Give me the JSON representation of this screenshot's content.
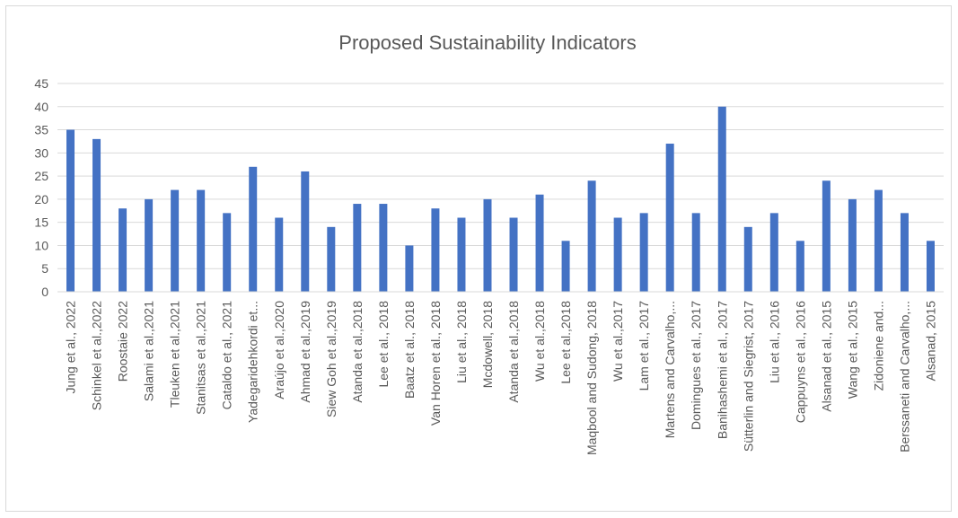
{
  "chart_data": {
    "type": "bar",
    "title": "Proposed Sustainability Indicators",
    "xlabel": "",
    "ylabel": "",
    "ylim": [
      0,
      45
    ],
    "yticks": [
      0,
      5,
      10,
      15,
      20,
      25,
      30,
      35,
      40,
      45
    ],
    "grid": true,
    "legend": "none",
    "bar_color": "#4472c4",
    "categories": [
      "Jung et al., 2022",
      "Schinkel et al.,2022",
      "Roostaie 2022",
      "Salami et al.,2021",
      "Tleuken et al.,2021",
      "Stanitsas et al.,2021",
      "Cataldo et al., 2021",
      "Yadegaridehkordi et...",
      "Araújo et al.,2020",
      "Ahmad et al.,2019",
      "Siew Goh et al.,2019",
      "Atanda et al.,2018",
      "Lee et al., 2018",
      "Baatz et al., 2018",
      "Van Horen et al., 2018",
      "Liu et al., 2018",
      "Mcdowell, 2018",
      "Atanda et al.,2018",
      "Wu et al.,2018",
      "Lee et al.,2018",
      "Maqbool and Sudong, 2018",
      "Wu et al.,2017",
      "Lam et al., 2017",
      "Martens and Carvalho,...",
      "Domingues et al., 2017",
      "Banihashemi et al., 2017",
      "Sütterlin and Siegrist, 2017",
      "Liu et al., 2016",
      "Cappuyns et al., 2016",
      "Alsanad et al., 2015",
      "Wang et al., 2015",
      "Zidoniene and...",
      "Berssaneti and Carvalho,...",
      "Alsanad, 2015"
    ],
    "values": [
      35,
      33,
      18,
      20,
      22,
      22,
      17,
      27,
      16,
      26,
      14,
      19,
      19,
      10,
      18,
      16,
      20,
      16,
      21,
      11,
      24,
      16,
      17,
      32,
      17,
      40,
      14,
      17,
      11,
      24,
      20,
      22,
      17,
      11
    ]
  }
}
